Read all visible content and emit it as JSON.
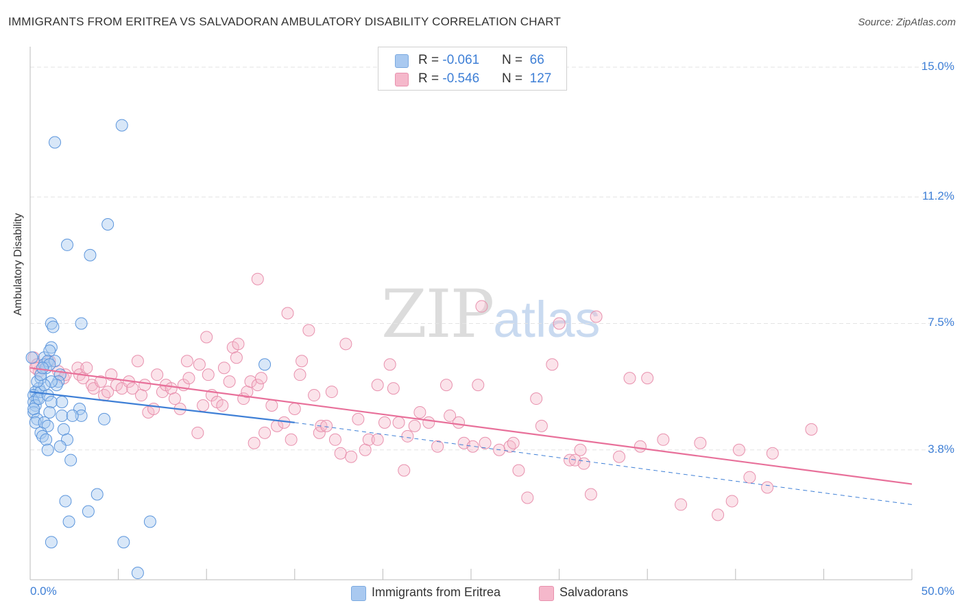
{
  "title": "IMMIGRANTS FROM ERITREA VS SALVADORAN AMBULATORY DISABILITY CORRELATION CHART",
  "source": "Source: ZipAtlas.com",
  "watermark": {
    "zip": "ZIP",
    "atlas": "atlas"
  },
  "legend_top": [
    {
      "r_label": "R = ",
      "r_value": "-0.061",
      "n_label": "N = ",
      "n_value": "66",
      "color": "#a9c9f0"
    },
    {
      "r_label": "R = ",
      "r_value": "-0.546",
      "n_label": "N = ",
      "n_value": "127",
      "color": "#f5b8cb"
    }
  ],
  "legend_bottom": [
    {
      "label": "Immigrants from Eritrea",
      "color": "#a9c9f0"
    },
    {
      "label": "Salvadorans",
      "color": "#f5b8cb"
    }
  ],
  "chart_data": {
    "type": "scatter",
    "ylabel": "Ambulatory Disability",
    "xlim": [
      0,
      50
    ],
    "ylim": [
      0,
      15.4
    ],
    "x_tick_labels": [
      "0.0%",
      "50.0%"
    ],
    "y_ticks": [
      3.8,
      7.5,
      11.2,
      15.0
    ],
    "y_tick_labels": [
      "3.8%",
      "7.5%",
      "11.2%",
      "15.0%"
    ],
    "grid": true,
    "colors": {
      "eritrea": "#3e7fd6",
      "eritrea_fill": "#a9c9f0",
      "salvadoran": "#e8709a",
      "salvadoran_fill": "#f5b8cb"
    },
    "series": [
      {
        "name": "Immigrants from Eritrea",
        "trend": {
          "x0": 0,
          "y0": 5.5,
          "x1": 15,
          "y1": 4.6,
          "dash_to_x": 50,
          "dash_to_y": 2.2
        },
        "points": [
          [
            5.2,
            13.3
          ],
          [
            1.4,
            12.8
          ],
          [
            4.4,
            10.4
          ],
          [
            2.1,
            9.8
          ],
          [
            3.4,
            9.5
          ],
          [
            2.9,
            7.5
          ],
          [
            1.2,
            7.5
          ],
          [
            1.3,
            7.4
          ],
          [
            1.2,
            6.8
          ],
          [
            0.8,
            6.5
          ],
          [
            1.1,
            6.7
          ],
          [
            13.3,
            6.3
          ],
          [
            0.8,
            6.3
          ],
          [
            0.9,
            6.2
          ],
          [
            1.0,
            6.4
          ],
          [
            0.6,
            5.9
          ],
          [
            1.7,
            6.0
          ],
          [
            1.6,
            5.8
          ],
          [
            1.5,
            5.7
          ],
          [
            1.2,
            5.8
          ],
          [
            0.5,
            5.6
          ],
          [
            0.3,
            5.5
          ],
          [
            0.2,
            5.4
          ],
          [
            0.4,
            5.3
          ],
          [
            0.6,
            5.5
          ],
          [
            0.2,
            5.2
          ],
          [
            0.3,
            5.1
          ],
          [
            0.5,
            5.3
          ],
          [
            1.0,
            5.4
          ],
          [
            0.8,
            5.7
          ],
          [
            1.2,
            5.2
          ],
          [
            1.8,
            5.2
          ],
          [
            2.8,
            5.0
          ],
          [
            2.9,
            4.8
          ],
          [
            0.2,
            4.9
          ],
          [
            0.4,
            4.7
          ],
          [
            1.1,
            4.9
          ],
          [
            1.8,
            4.8
          ],
          [
            2.4,
            4.8
          ],
          [
            4.2,
            4.7
          ],
          [
            0.3,
            4.6
          ],
          [
            0.8,
            4.6
          ],
          [
            1.0,
            4.5
          ],
          [
            1.9,
            4.4
          ],
          [
            0.6,
            4.3
          ],
          [
            0.7,
            4.2
          ],
          [
            0.9,
            4.1
          ],
          [
            2.1,
            4.1
          ],
          [
            1.7,
            3.9
          ],
          [
            1.0,
            3.8
          ],
          [
            2.3,
            3.5
          ],
          [
            0.4,
            5.8
          ],
          [
            0.6,
            6.0
          ],
          [
            1.4,
            6.4
          ],
          [
            1.1,
            6.3
          ],
          [
            0.7,
            6.2
          ],
          [
            3.8,
            2.5
          ],
          [
            2.0,
            2.3
          ],
          [
            3.3,
            2.0
          ],
          [
            2.2,
            1.7
          ],
          [
            6.8,
            1.7
          ],
          [
            1.2,
            1.1
          ],
          [
            5.3,
            1.1
          ],
          [
            6.1,
            0.2
          ],
          [
            0.1,
            6.5
          ],
          [
            0.2,
            5.0
          ]
        ]
      },
      {
        "name": "Salvadorans",
        "trend": {
          "x0": 0,
          "y0": 6.2,
          "x1": 50,
          "y1": 2.8
        },
        "points": [
          [
            0.2,
            6.5
          ],
          [
            0.4,
            6.3
          ],
          [
            0.5,
            6.1
          ],
          [
            1.1,
            6.4
          ],
          [
            1.6,
            6.1
          ],
          [
            1.9,
            5.9
          ],
          [
            2.0,
            6.0
          ],
          [
            2.7,
            6.2
          ],
          [
            2.8,
            6.0
          ],
          [
            3.0,
            5.9
          ],
          [
            3.2,
            6.2
          ],
          [
            3.5,
            5.7
          ],
          [
            3.6,
            5.6
          ],
          [
            4.0,
            5.8
          ],
          [
            4.2,
            5.4
          ],
          [
            4.4,
            5.5
          ],
          [
            4.6,
            6.0
          ],
          [
            4.9,
            5.7
          ],
          [
            5.2,
            5.6
          ],
          [
            5.6,
            5.8
          ],
          [
            5.8,
            5.6
          ],
          [
            6.1,
            6.4
          ],
          [
            6.3,
            5.4
          ],
          [
            6.5,
            5.7
          ],
          [
            6.7,
            4.9
          ],
          [
            7.0,
            5.0
          ],
          [
            7.2,
            6.0
          ],
          [
            7.5,
            5.5
          ],
          [
            7.7,
            5.7
          ],
          [
            8.0,
            5.6
          ],
          [
            8.2,
            5.3
          ],
          [
            8.5,
            5.0
          ],
          [
            8.7,
            5.7
          ],
          [
            8.9,
            6.4
          ],
          [
            9.0,
            5.9
          ],
          [
            9.5,
            4.3
          ],
          [
            9.6,
            6.3
          ],
          [
            9.8,
            5.1
          ],
          [
            10.0,
            7.1
          ],
          [
            10.1,
            6.0
          ],
          [
            10.3,
            5.4
          ],
          [
            10.6,
            5.2
          ],
          [
            10.9,
            5.1
          ],
          [
            11.0,
            6.2
          ],
          [
            11.3,
            5.8
          ],
          [
            11.5,
            6.8
          ],
          [
            11.7,
            6.5
          ],
          [
            11.8,
            6.9
          ],
          [
            12.1,
            5.3
          ],
          [
            12.3,
            5.5
          ],
          [
            12.5,
            5.8
          ],
          [
            12.7,
            4.0
          ],
          [
            12.9,
            5.7
          ],
          [
            13.1,
            5.9
          ],
          [
            13.3,
            4.3
          ],
          [
            13.7,
            5.1
          ],
          [
            14.0,
            4.5
          ],
          [
            14.4,
            4.6
          ],
          [
            14.6,
            7.8
          ],
          [
            14.8,
            4.1
          ],
          [
            15.0,
            5.0
          ],
          [
            15.3,
            6.0
          ],
          [
            15.4,
            6.4
          ],
          [
            15.8,
            7.3
          ],
          [
            16.1,
            5.4
          ],
          [
            16.4,
            4.3
          ],
          [
            16.5,
            4.5
          ],
          [
            16.8,
            4.5
          ],
          [
            17.1,
            5.5
          ],
          [
            17.3,
            4.1
          ],
          [
            17.6,
            3.7
          ],
          [
            17.9,
            6.9
          ],
          [
            18.2,
            3.6
          ],
          [
            18.6,
            4.7
          ],
          [
            19.0,
            3.8
          ],
          [
            19.2,
            4.1
          ],
          [
            19.7,
            4.1
          ],
          [
            19.7,
            5.7
          ],
          [
            20.1,
            4.6
          ],
          [
            20.4,
            6.3
          ],
          [
            20.6,
            5.6
          ],
          [
            20.9,
            4.6
          ],
          [
            21.2,
            3.2
          ],
          [
            21.4,
            4.2
          ],
          [
            21.8,
            4.5
          ],
          [
            22.1,
            4.9
          ],
          [
            22.6,
            4.6
          ],
          [
            23.1,
            3.9
          ],
          [
            23.6,
            5.7
          ],
          [
            23.8,
            4.8
          ],
          [
            24.3,
            4.6
          ],
          [
            24.6,
            4.0
          ],
          [
            25.1,
            3.9
          ],
          [
            25.4,
            5.7
          ],
          [
            25.6,
            8.0
          ],
          [
            25.8,
            4.0
          ],
          [
            26.6,
            3.8
          ],
          [
            27.2,
            3.9
          ],
          [
            27.7,
            3.2
          ],
          [
            27.4,
            4.0
          ],
          [
            28.2,
            2.4
          ],
          [
            28.7,
            5.3
          ],
          [
            29.0,
            4.5
          ],
          [
            29.6,
            6.3
          ],
          [
            30.0,
            7.5
          ],
          [
            30.6,
            3.5
          ],
          [
            30.9,
            3.5
          ],
          [
            31.2,
            3.8
          ],
          [
            31.4,
            3.4
          ],
          [
            31.8,
            2.5
          ],
          [
            32.1,
            7.7
          ],
          [
            33.4,
            3.6
          ],
          [
            34.0,
            5.9
          ],
          [
            34.6,
            3.9
          ],
          [
            35.0,
            5.9
          ],
          [
            35.9,
            4.1
          ],
          [
            36.9,
            2.2
          ],
          [
            38.0,
            4.0
          ],
          [
            39.0,
            1.9
          ],
          [
            40.2,
            3.8
          ],
          [
            40.8,
            3.0
          ],
          [
            41.8,
            2.7
          ],
          [
            42.1,
            3.7
          ],
          [
            44.3,
            4.4
          ],
          [
            39.8,
            2.3
          ],
          [
            12.9,
            8.8
          ],
          [
            0.3,
            6.2
          ]
        ]
      }
    ]
  }
}
